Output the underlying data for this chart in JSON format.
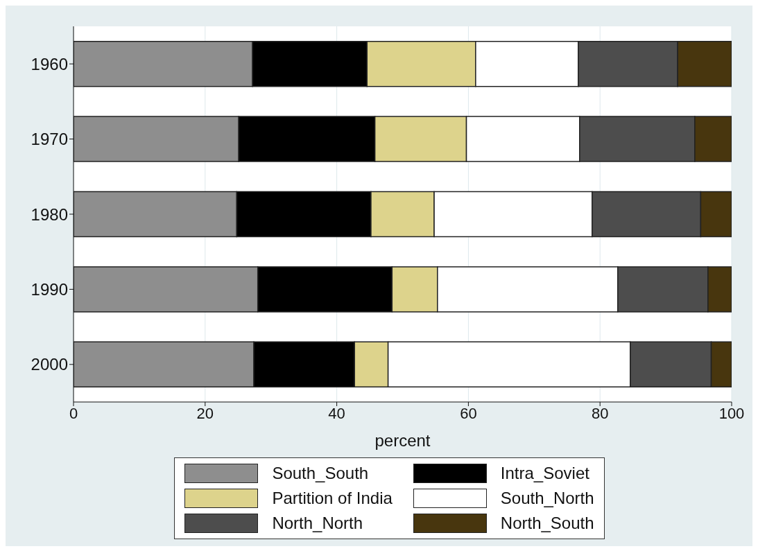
{
  "chart_data": {
    "type": "bar",
    "orientation": "horizontal",
    "stacked": true,
    "xlabel": "percent",
    "categories": [
      "1960",
      "1970",
      "1980",
      "1990",
      "2000"
    ],
    "series": [
      {
        "name": "South_South",
        "color": "#8e8e8e",
        "values": [
          27.2,
          25.1,
          24.8,
          28.0,
          27.4
        ]
      },
      {
        "name": "Intra_Soviet",
        "color": "#000000",
        "values": [
          17.4,
          20.7,
          20.4,
          20.4,
          15.3
        ]
      },
      {
        "name": "Partition of India",
        "color": "#ddd38c",
        "values": [
          16.5,
          13.9,
          9.6,
          6.9,
          5.1
        ]
      },
      {
        "name": "South_North",
        "color": "#ffffff",
        "values": [
          15.6,
          17.2,
          24.0,
          27.4,
          36.8
        ]
      },
      {
        "name": "North_North",
        "color": "#4d4d4d",
        "values": [
          15.1,
          17.5,
          16.5,
          13.7,
          12.3
        ]
      },
      {
        "name": "North_South",
        "color": "#48360e",
        "values": [
          8.2,
          5.6,
          4.7,
          3.6,
          3.1
        ]
      }
    ],
    "xlim": [
      0,
      100
    ],
    "xticks": [
      0,
      20,
      40,
      60,
      80,
      100
    ],
    "grid": "x",
    "legend": "bottom"
  }
}
